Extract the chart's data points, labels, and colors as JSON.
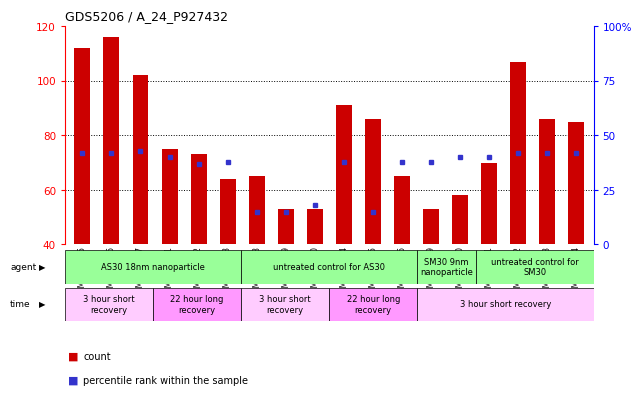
{
  "title": "GDS5206 / A_24_P927432",
  "categories": [
    "GSM1299155",
    "GSM1299156",
    "GSM1299157",
    "GSM1299161",
    "GSM1299162",
    "GSM1299163",
    "GSM1299158",
    "GSM1299159",
    "GSM1299160",
    "GSM1299164",
    "GSM1299165",
    "GSM1299166",
    "GSM1299149",
    "GSM1299150",
    "GSM1299151",
    "GSM1299152",
    "GSM1299153",
    "GSM1299154"
  ],
  "bar_values": [
    112,
    116,
    102,
    75,
    73,
    64,
    65,
    53,
    53,
    91,
    86,
    65,
    53,
    58,
    70,
    107,
    86,
    85
  ],
  "blue_pct": [
    42,
    42,
    43,
    40,
    37,
    38,
    15,
    15,
    18,
    38,
    15,
    38,
    38,
    40,
    40,
    42,
    42,
    42
  ],
  "ymin": 40,
  "ymax": 120,
  "yticks_left": [
    40,
    60,
    80,
    100,
    120
  ],
  "yticks_right": [
    0,
    25,
    50,
    75,
    100
  ],
  "bar_color": "#cc0000",
  "blue_color": "#3333cc",
  "agent_groups": [
    {
      "label": "AS30 18nm nanoparticle",
      "start": 0,
      "end": 6,
      "color": "#99ff99"
    },
    {
      "label": "untreated control for AS30",
      "start": 6,
      "end": 12,
      "color": "#99ff99"
    },
    {
      "label": "SM30 9nm\nnanoparticle",
      "start": 12,
      "end": 14,
      "color": "#99ff99"
    },
    {
      "label": "untreated control for\nSM30",
      "start": 14,
      "end": 18,
      "color": "#99ff99"
    }
  ],
  "time_groups": [
    {
      "label": "3 hour short\nrecovery",
      "start": 0,
      "end": 3,
      "color": "#ffccff"
    },
    {
      "label": "22 hour long\nrecovery",
      "start": 3,
      "end": 6,
      "color": "#ff99ff"
    },
    {
      "label": "3 hour short\nrecovery",
      "start": 6,
      "end": 9,
      "color": "#ffccff"
    },
    {
      "label": "22 hour long\nrecovery",
      "start": 9,
      "end": 12,
      "color": "#ff99ff"
    },
    {
      "label": "3 hour short recovery",
      "start": 12,
      "end": 18,
      "color": "#ffccff"
    }
  ],
  "legend_count_color": "#cc0000",
  "legend_pct_color": "#3333cc"
}
